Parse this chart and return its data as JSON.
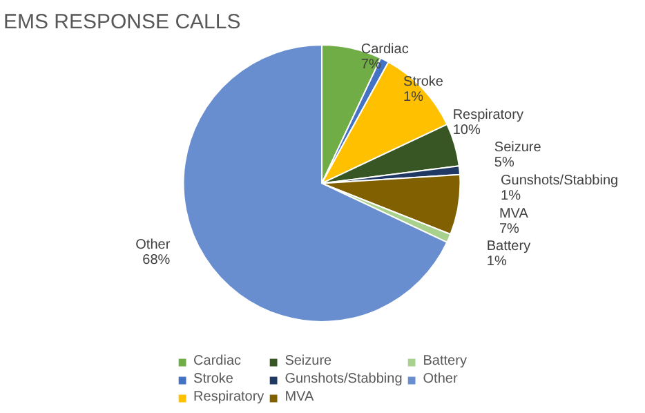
{
  "chart_data": {
    "type": "pie",
    "title": "EMS RESPONSE CALLS",
    "categories": [
      "Cardiac",
      "Stroke",
      "Respiratory",
      "Seizure",
      "Gunshots/Stabbing",
      "MVA",
      "Battery",
      "Other"
    ],
    "values": [
      7,
      1,
      10,
      5,
      1,
      7,
      1,
      68
    ],
    "colors": [
      "#70ad47",
      "#4472c4",
      "#ffc000",
      "#375623",
      "#203864",
      "#806000",
      "#a9d18e",
      "#698ed0"
    ],
    "value_labels": [
      "7%",
      "1%",
      "10%",
      "5%",
      "1%",
      "7%",
      "1%",
      "68%"
    ],
    "legend": "bottom"
  }
}
